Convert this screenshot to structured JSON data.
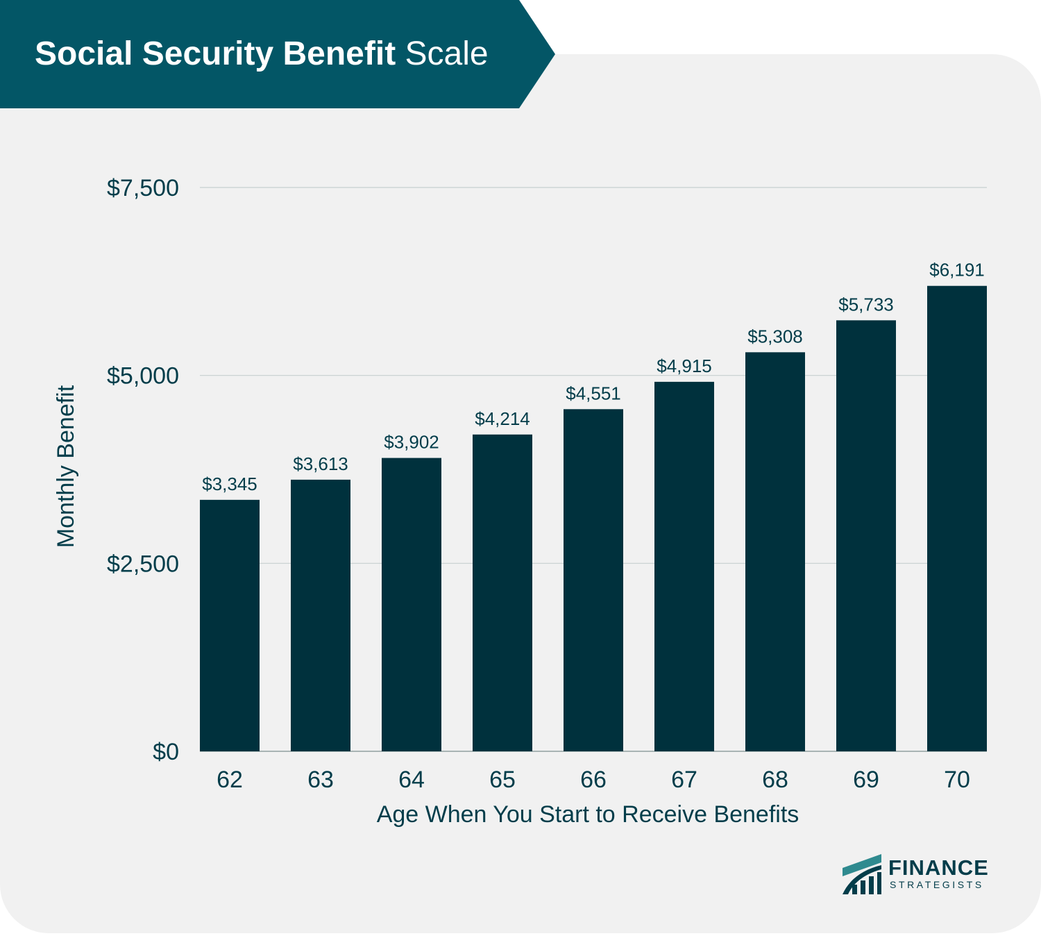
{
  "header": {
    "title_bold": "Social Security Benefit",
    "title_light": "Scale"
  },
  "colors": {
    "banner": "#035666",
    "bar": "#00313d",
    "text": "#033d4a",
    "card": "#f1f1f1",
    "grid": "#c6cfcf"
  },
  "chart_data": {
    "type": "bar",
    "categories": [
      "62",
      "63",
      "64",
      "65",
      "66",
      "67",
      "68",
      "69",
      "70"
    ],
    "values": [
      3345,
      3613,
      3902,
      4214,
      4551,
      4915,
      5308,
      5733,
      6191
    ],
    "data_labels": [
      "$3,345",
      "$3,613",
      "$3,902",
      "$4,214",
      "$4,551",
      "$4,915",
      "$5,308",
      "$5,733",
      "$6,191"
    ],
    "xlabel": "Age When You Start to Receive Benefits",
    "ylabel": "Monthly Benefit",
    "ylim": [
      0,
      7500
    ],
    "yticks": [
      0,
      2500,
      5000,
      7500
    ],
    "ytick_labels": [
      "$0",
      "$2,500",
      "$5,000",
      "$7,500"
    ],
    "grid": true,
    "legend": "none"
  },
  "logo": {
    "line1": "FINANCE",
    "line2": "STRATEGISTS",
    "icon": "rising-bars-logo-icon"
  }
}
